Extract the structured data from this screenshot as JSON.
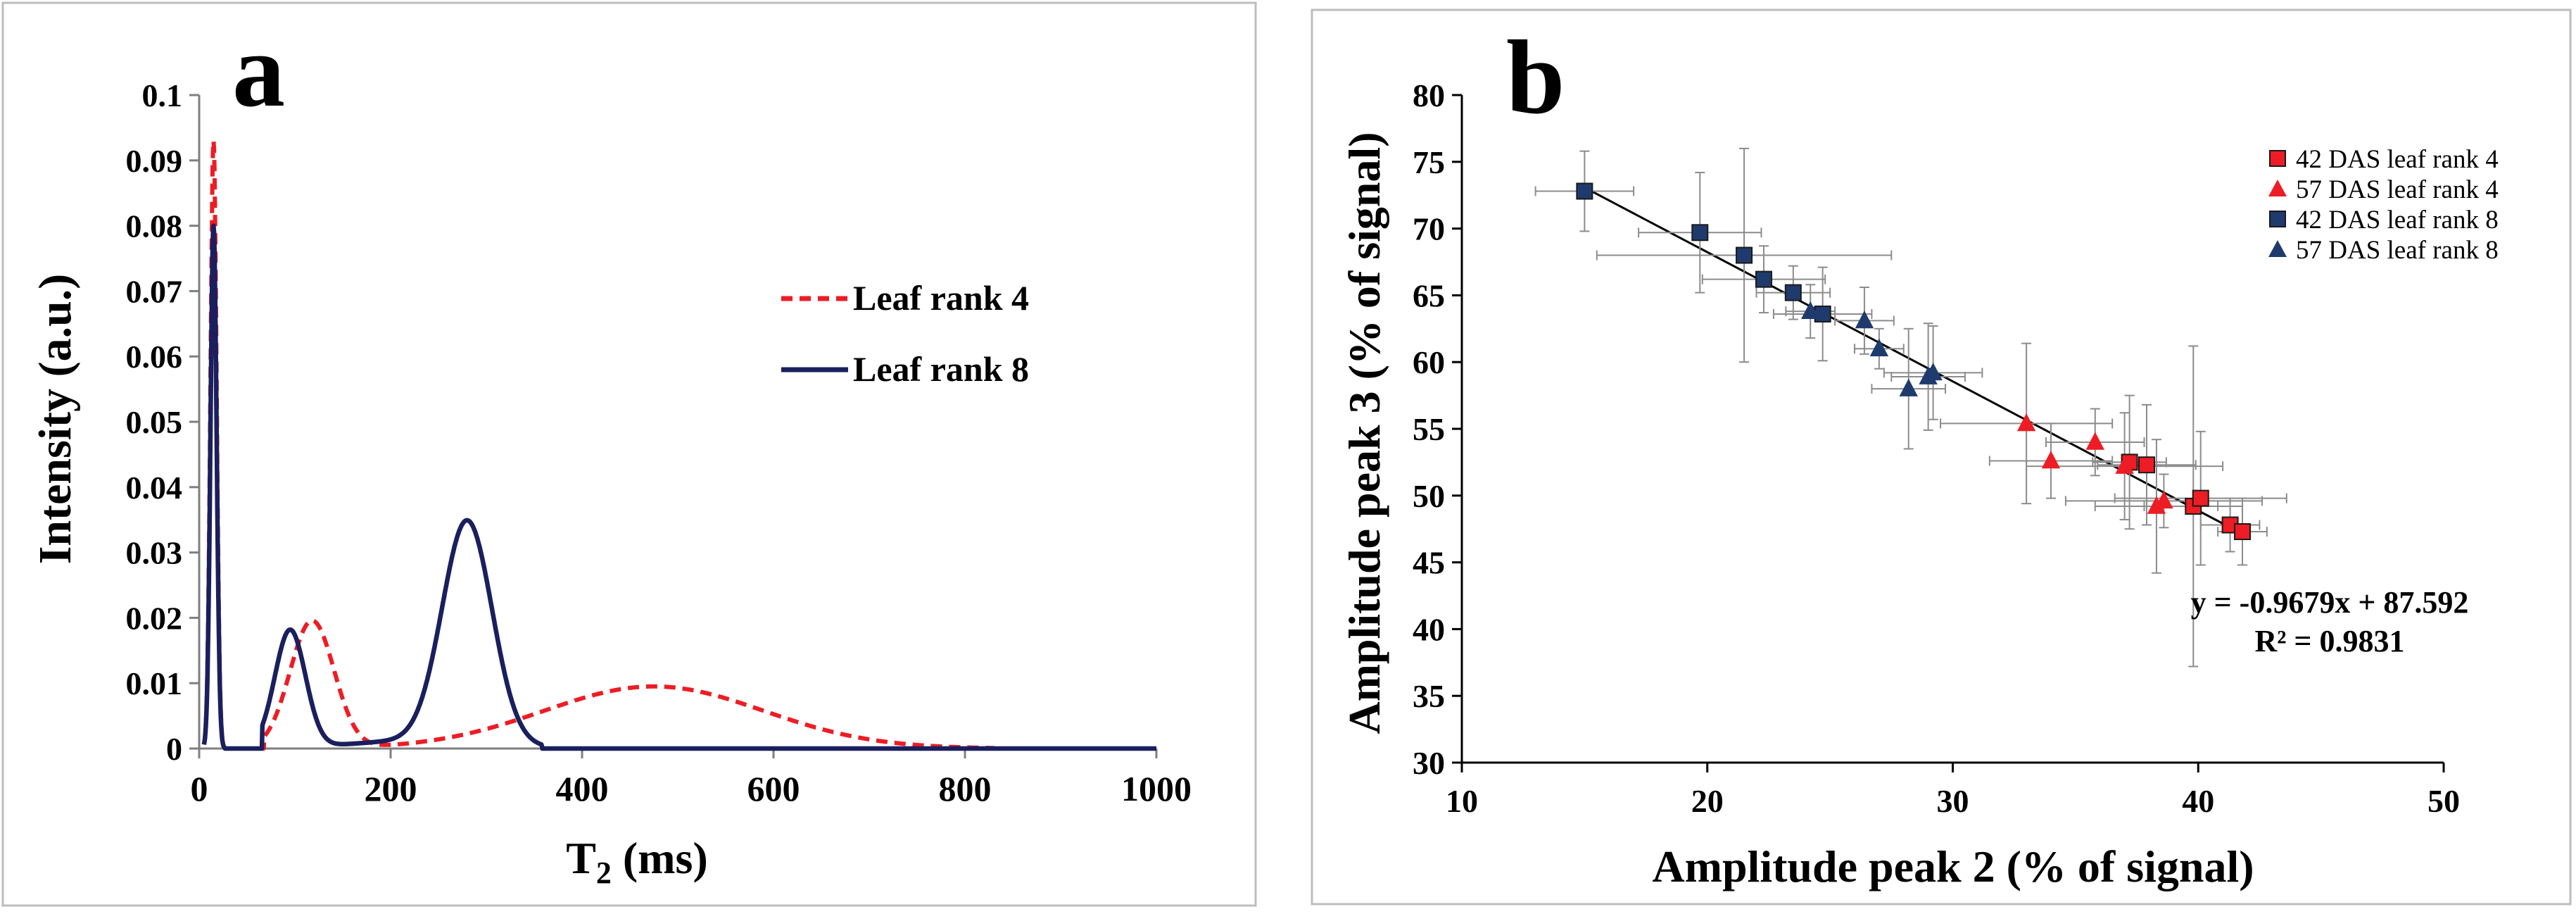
{
  "chart_data": [
    {
      "panel": "a",
      "type": "line",
      "xlabel_main": "T",
      "xlabel_sub": "2",
      "xlabel_rest": " (ms)",
      "ylabel": "Intensity (a.u.)",
      "xlim": [
        0,
        1000
      ],
      "ylim": [
        0,
        0.1
      ],
      "xticks": [
        "0",
        "200",
        "400",
        "600",
        "800",
        "1000"
      ],
      "xtick_values": [
        0,
        200,
        400,
        600,
        800,
        1000
      ],
      "yticks": [
        "0",
        "0.01",
        "0.02",
        "0.03",
        "0.04",
        "0.05",
        "0.06",
        "0.07",
        "0.08",
        "0.09",
        "0.1"
      ],
      "ytick_values": [
        0,
        0.01,
        0.02,
        0.03,
        0.04,
        0.05,
        0.06,
        0.07,
        0.08,
        0.09,
        0.1
      ],
      "series": [
        {
          "name": "Leaf rank 4",
          "color": "#ee1c24",
          "dash": true,
          "peaks": [
            {
              "center": 15,
              "amp": 0.093,
              "sigma": 3.2
            },
            {
              "center": 118,
              "amp": 0.0195,
              "sigma": 23
            },
            {
              "center": 475,
              "amp": 0.0095,
              "sigma": 115
            }
          ],
          "x_min": 68
        },
        {
          "name": "Leaf rank 8",
          "color": "#1a1f5e",
          "dash": false,
          "peaks": [
            {
              "center": 15,
              "amp": 0.08,
              "sigma": 3.2
            },
            {
              "center": 95,
              "amp": 0.018,
              "sigma": 16
            },
            {
              "center": 280,
              "amp": 0.034,
              "sigma": 26
            }
          ],
          "baseline": {
            "center": 230,
            "amp": 0.0012,
            "sigma": 70
          },
          "x_min": 66,
          "x_max": 358
        }
      ]
    },
    {
      "panel": "b",
      "type": "scatter",
      "xlabel": "Amplitude peak 2 (% of signal)",
      "ylabel": "Amplitude peak 3 (% of signal)",
      "xlim": [
        10,
        50
      ],
      "ylim": [
        30,
        80
      ],
      "xticks": [
        "10",
        "20",
        "30",
        "40",
        "50"
      ],
      "xtick_values": [
        10,
        20,
        30,
        40,
        50
      ],
      "yticks": [
        "30",
        "35",
        "40",
        "45",
        "50",
        "55",
        "60",
        "65",
        "70",
        "75",
        "80"
      ],
      "ytick_values": [
        30,
        35,
        40,
        45,
        50,
        55,
        60,
        65,
        70,
        75,
        80
      ],
      "fit": {
        "equation": "y = -0.9679x + 87.592",
        "r2": "R² = 0.9831",
        "slope": -0.9679,
        "intercept": 87.592,
        "x_range": [
          15,
          41.8
        ]
      },
      "series": [
        {
          "name": "42 DAS leaf rank 4",
          "marker": "square",
          "color": "#ee1c24",
          "points": [
            {
              "x": 37.2,
              "y": 52.5,
              "xerr": 1.5,
              "yerr": 5.0
            },
            {
              "x": 37.9,
              "y": 52.3,
              "xerr": 2.0,
              "yerr": 4.5
            },
            {
              "x": 39.8,
              "y": 49.2,
              "xerr": 2.0,
              "yerr": 12.0
            },
            {
              "x": 40.1,
              "y": 49.8,
              "xerr": 3.5,
              "yerr": 5.0
            },
            {
              "x": 41.3,
              "y": 47.8,
              "xerr": 1.2,
              "yerr": 2.0
            },
            {
              "x": 41.8,
              "y": 47.3,
              "xerr": 1.0,
              "yerr": 2.5
            }
          ]
        },
        {
          "name": "57 DAS leaf rank 4",
          "marker": "triangle",
          "color": "#ee1c24",
          "points": [
            {
              "x": 33.0,
              "y": 55.4,
              "xerr": 3.5,
              "yerr": 6.0
            },
            {
              "x": 34.0,
              "y": 52.6,
              "xerr": 2.5,
              "yerr": 2.8
            },
            {
              "x": 35.8,
              "y": 54.0,
              "xerr": 2.0,
              "yerr": 2.5
            },
            {
              "x": 37.0,
              "y": 52.2,
              "xerr": 4.0,
              "yerr": 4.0
            },
            {
              "x": 38.3,
              "y": 49.2,
              "xerr": 2.5,
              "yerr": 5.0
            },
            {
              "x": 38.6,
              "y": 49.6,
              "xerr": 4.0,
              "yerr": 2.0
            }
          ]
        },
        {
          "name": "42 DAS leaf rank 8",
          "marker": "square",
          "color": "#1f3b6e",
          "points": [
            {
              "x": 15.0,
              "y": 72.8,
              "xerr": 2.0,
              "yerr": 3.0
            },
            {
              "x": 19.7,
              "y": 69.7,
              "xerr": 2.5,
              "yerr": 4.5
            },
            {
              "x": 21.5,
              "y": 68.0,
              "xerr": 6.0,
              "yerr": 8.0
            },
            {
              "x": 22.3,
              "y": 66.2,
              "xerr": 2.5,
              "yerr": 2.5
            },
            {
              "x": 23.5,
              "y": 65.2,
              "xerr": 1.5,
              "yerr": 2.0
            },
            {
              "x": 24.7,
              "y": 63.6,
              "xerr": 2.0,
              "yerr": 3.5
            }
          ]
        },
        {
          "name": "57 DAS leaf rank 8",
          "marker": "triangle",
          "color": "#1f3b6e",
          "points": [
            {
              "x": 24.2,
              "y": 63.8,
              "xerr": 1.0,
              "yerr": 2.0
            },
            {
              "x": 26.4,
              "y": 63.1,
              "xerr": 1.2,
              "yerr": 2.5
            },
            {
              "x": 27.0,
              "y": 61.0,
              "xerr": 1.0,
              "yerr": 1.5
            },
            {
              "x": 28.2,
              "y": 58.0,
              "xerr": 1.5,
              "yerr": 4.5
            },
            {
              "x": 29.0,
              "y": 58.9,
              "xerr": 1.5,
              "yerr": 4.0
            },
            {
              "x": 29.2,
              "y": 59.2,
              "xerr": 2.0,
              "yerr": 3.5
            }
          ]
        }
      ]
    }
  ],
  "panel_labels": {
    "a": "a",
    "b": "b"
  }
}
